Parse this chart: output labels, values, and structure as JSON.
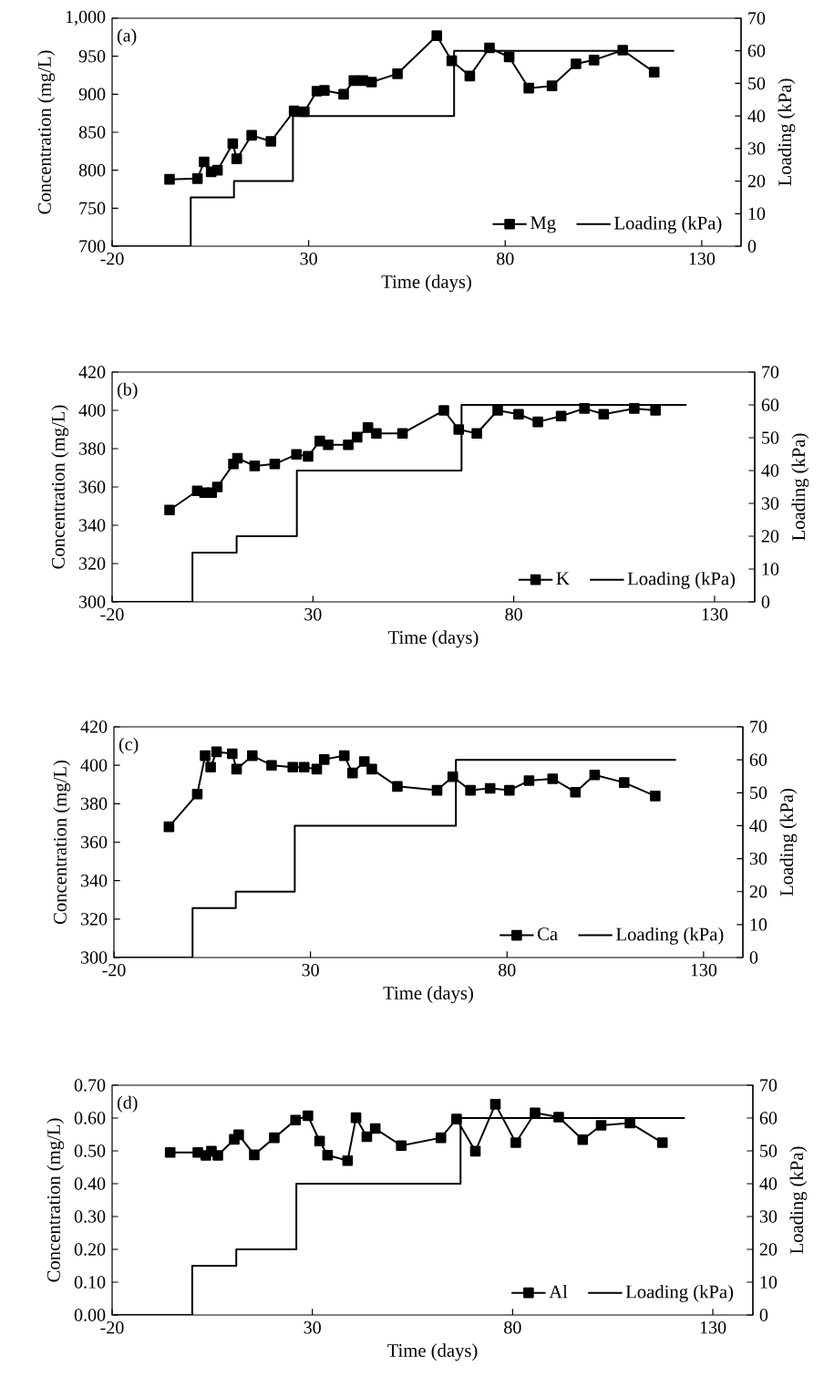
{
  "chart_data": [
    {
      "type": "line",
      "xlabel": "Time (days)",
      "ylabel": "Concentration (mg/L)",
      "y2label": "Loading (kPa)",
      "annotations": [
        "(a)"
      ],
      "legend": "bottom right",
      "xlim": [
        -20,
        140
      ],
      "xticks": [
        -20,
        30,
        80,
        130
      ],
      "ylim": [
        700,
        1000
      ],
      "yticks": [
        700,
        750,
        800,
        850,
        900,
        950,
        {
          "value": 1000,
          "label": "1,000"
        }
      ],
      "y2lim": [
        0,
        70
      ],
      "y2ticks": [
        0,
        10,
        20,
        30,
        40,
        50,
        60,
        70
      ],
      "series": [
        {
          "name": "Mg",
          "color": "#000000",
          "marker": "square",
          "axis": "y",
          "x": [
            -5.4,
            1.7,
            3.4,
            5.2,
            6.8,
            10.7,
            11.7,
            15.5,
            20.4,
            26.3,
            28.9,
            32.1,
            34.0,
            38.9,
            41.5,
            43.8,
            46.0,
            52.6,
            62.6,
            66.4,
            71.0,
            76.0,
            81.0,
            86.0,
            91.9,
            98.0,
            102.6,
            109.9,
            117.9
          ],
          "values": [
            788,
            789,
            811,
            798,
            800,
            835,
            815,
            846,
            838,
            878,
            877,
            904,
            905,
            900,
            918,
            918,
            916,
            927,
            977,
            944,
            924,
            961,
            949,
            908,
            911,
            940,
            945,
            958,
            929
          ]
        },
        {
          "name": "Loading (kPa)",
          "color": "#000000",
          "marker": "none",
          "axis": "y2",
          "x": [
            -20,
            0,
            0,
            11,
            11,
            26,
            26,
            67,
            67,
            123
          ],
          "values": [
            0,
            0,
            15,
            15,
            20,
            20,
            40,
            40,
            60,
            60
          ]
        }
      ]
    },
    {
      "type": "line",
      "xlabel": "Time (days)",
      "ylabel": "Concentration (mg/L)",
      "y2label": "Loading (kPa)",
      "annotations": [
        "(b)"
      ],
      "legend": "bottom right",
      "xlim": [
        -20,
        140
      ],
      "xticks": [
        -20,
        30,
        80,
        130
      ],
      "ylim": [
        300,
        420
      ],
      "yticks": [
        300,
        320,
        340,
        360,
        380,
        400,
        420
      ],
      "y2lim": [
        0,
        70
      ],
      "y2ticks": [
        0,
        10,
        20,
        30,
        40,
        50,
        60,
        70
      ],
      "series": [
        {
          "name": "K",
          "color": "#000000",
          "marker": "square",
          "axis": "y",
          "x": [
            -5.7,
            1.2,
            3.0,
            4.8,
            6.2,
            10.2,
            11.2,
            15.5,
            20.5,
            25.9,
            28.8,
            31.7,
            33.8,
            38.8,
            41.0,
            43.7,
            45.8,
            52.3,
            62.6,
            66.3,
            70.8,
            76.0,
            81.2,
            86.0,
            91.8,
            97.6,
            102.4,
            110.0,
            115.3
          ],
          "values": [
            348,
            358,
            357,
            357,
            360,
            372,
            375,
            371,
            372,
            377,
            376,
            384,
            382,
            382,
            386,
            391,
            388,
            388,
            400,
            390,
            388,
            400,
            398,
            394,
            397,
            401,
            398,
            401,
            400
          ]
        },
        {
          "name": "Loading (kPa)",
          "color": "#000000",
          "marker": "none",
          "axis": "y2",
          "x": [
            -20,
            0,
            0,
            11,
            11,
            26,
            26,
            67,
            67,
            123
          ],
          "values": [
            0,
            0,
            15,
            15,
            20,
            20,
            40,
            40,
            60,
            60
          ]
        }
      ]
    },
    {
      "type": "line",
      "xlabel": "Time (days)",
      "ylabel": "Concentration (mg/L)",
      "y2label": "Loading (kPa)",
      "annotations": [
        "(c)"
      ],
      "legend": "bottom right",
      "xlim": [
        -20,
        140
      ],
      "xticks": [
        -20,
        30,
        80,
        130
      ],
      "ylim": [
        300,
        420
      ],
      "yticks": [
        300,
        320,
        340,
        360,
        380,
        400,
        420
      ],
      "y2lim": [
        0,
        70
      ],
      "y2ticks": [
        0,
        10,
        20,
        30,
        40,
        50,
        60,
        70
      ],
      "series": [
        {
          "name": "Ca",
          "color": "#000000",
          "marker": "square",
          "axis": "y",
          "x": [
            -6.0,
            1.2,
            3.2,
            4.6,
            6.1,
            10.1,
            11.2,
            15.2,
            20.1,
            25.5,
            28.4,
            31.6,
            33.5,
            38.6,
            40.7,
            43.7,
            45.6,
            52.1,
            62.2,
            66.2,
            70.7,
            75.7,
            80.6,
            85.6,
            91.6,
            97.4,
            102.3,
            109.8,
            117.7
          ],
          "values": [
            368,
            385,
            405,
            399,
            407,
            406,
            398,
            405,
            400,
            399,
            399,
            398,
            403,
            405,
            396,
            402,
            398,
            389,
            387,
            394,
            387,
            388,
            387,
            392,
            393,
            386,
            395,
            391,
            384
          ]
        },
        {
          "name": "Loading (kPa)",
          "color": "#000000",
          "marker": "none",
          "axis": "y2",
          "x": [
            -20,
            0,
            0,
            11,
            11,
            26,
            26,
            67,
            67,
            123
          ],
          "values": [
            0,
            0,
            15,
            15,
            20,
            20,
            40,
            40,
            60,
            60
          ]
        }
      ]
    },
    {
      "type": "line",
      "xlabel": "Time (days)",
      "ylabel": "Concentration (mg/L)",
      "y2label": "Loading (kPa)",
      "annotations": [
        "(d)"
      ],
      "legend": "bottom right",
      "xlim": [
        -20,
        140
      ],
      "xticks": [
        -20,
        30,
        80,
        130
      ],
      "ylim": [
        0,
        0.7
      ],
      "yticks": [
        {
          "value": 0,
          "label": "0.00"
        },
        {
          "value": 0.1,
          "label": "0.10"
        },
        {
          "value": 0.2,
          "label": "0.20"
        },
        {
          "value": 0.3,
          "label": "0.30"
        },
        {
          "value": 0.4,
          "label": "0.40"
        },
        {
          "value": 0.5,
          "label": "0.50"
        },
        {
          "value": 0.6,
          "label": "0.60"
        },
        {
          "value": 0.7,
          "label": "0.70"
        }
      ],
      "y2lim": [
        0,
        70
      ],
      "y2ticks": [
        0,
        10,
        20,
        30,
        40,
        50,
        60,
        70
      ],
      "series": [
        {
          "name": "Al",
          "color": "#000000",
          "marker": "square",
          "axis": "y",
          "x": [
            -5.5,
            1.4,
            3.4,
            4.8,
            6.4,
            10.5,
            11.6,
            15.5,
            20.5,
            25.8,
            28.9,
            31.8,
            33.8,
            38.8,
            40.9,
            43.6,
            45.7,
            52.2,
            62.1,
            66.0,
            70.7,
            75.7,
            80.8,
            85.6,
            91.5,
            97.5,
            102.1,
            109.3,
            117.4
          ],
          "values": [
            0.495,
            0.495,
            0.486,
            0.499,
            0.486,
            0.535,
            0.549,
            0.488,
            0.54,
            0.594,
            0.607,
            0.53,
            0.487,
            0.47,
            0.601,
            0.543,
            0.568,
            0.516,
            0.54,
            0.597,
            0.499,
            0.642,
            0.525,
            0.616,
            0.603,
            0.534,
            0.578,
            0.585,
            0.525
          ]
        },
        {
          "name": "Loading (kPa)",
          "color": "#000000",
          "marker": "none",
          "axis": "y2",
          "x": [
            -20,
            0,
            0,
            11,
            11,
            26,
            26,
            67,
            67,
            123
          ],
          "values": [
            0,
            0,
            15,
            15,
            20,
            20,
            40,
            40,
            60,
            60
          ]
        }
      ]
    }
  ]
}
